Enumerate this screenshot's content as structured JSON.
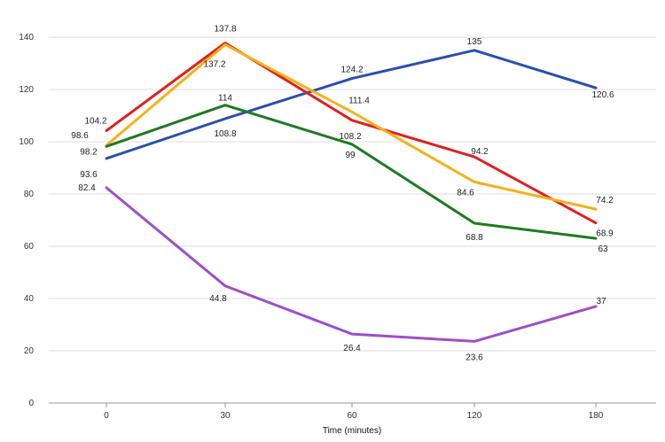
{
  "chart_data": {
    "type": "line",
    "title": "",
    "xlabel": "Time (minutes)",
    "ylabel": "",
    "categories": [
      "0",
      "30",
      "60",
      "120",
      "180"
    ],
    "ylim": [
      0,
      140
    ],
    "yticks": [
      "0",
      "20",
      "40",
      "60",
      "80",
      "100",
      "120",
      "140"
    ],
    "grid": true,
    "series": [
      {
        "name": "blue",
        "color": "#2a4fb0",
        "values": [
          93.6,
          108.8,
          124.2,
          135,
          120.6
        ],
        "labels": [
          "93.6",
          "108.8",
          "124.2",
          "135",
          "120.6"
        ]
      },
      {
        "name": "red",
        "color": "#e0201e",
        "values": [
          104.2,
          137.8,
          108.2,
          94.2,
          68.9
        ],
        "labels": [
          "104.2",
          "137.8",
          "108.2",
          "94.2",
          "68.9"
        ]
      },
      {
        "name": "orange",
        "color": "#f4b21a",
        "values": [
          98.6,
          137.2,
          111.4,
          84.6,
          74.2
        ],
        "labels": [
          "98.6",
          "137.2",
          "111.4",
          "84.6",
          "74.2"
        ]
      },
      {
        "name": "green",
        "color": "#1e7b22",
        "values": [
          98.2,
          114,
          99,
          68.8,
          63
        ],
        "labels": [
          "98.2",
          "114",
          "99",
          "68.8",
          "63"
        ]
      },
      {
        "name": "purple",
        "color": "#a04ec8",
        "values": [
          82.4,
          44.8,
          26.4,
          23.6,
          37
        ],
        "labels": [
          "82.4",
          "44.8",
          "26.4",
          "23.6",
          "37"
        ]
      }
    ]
  }
}
